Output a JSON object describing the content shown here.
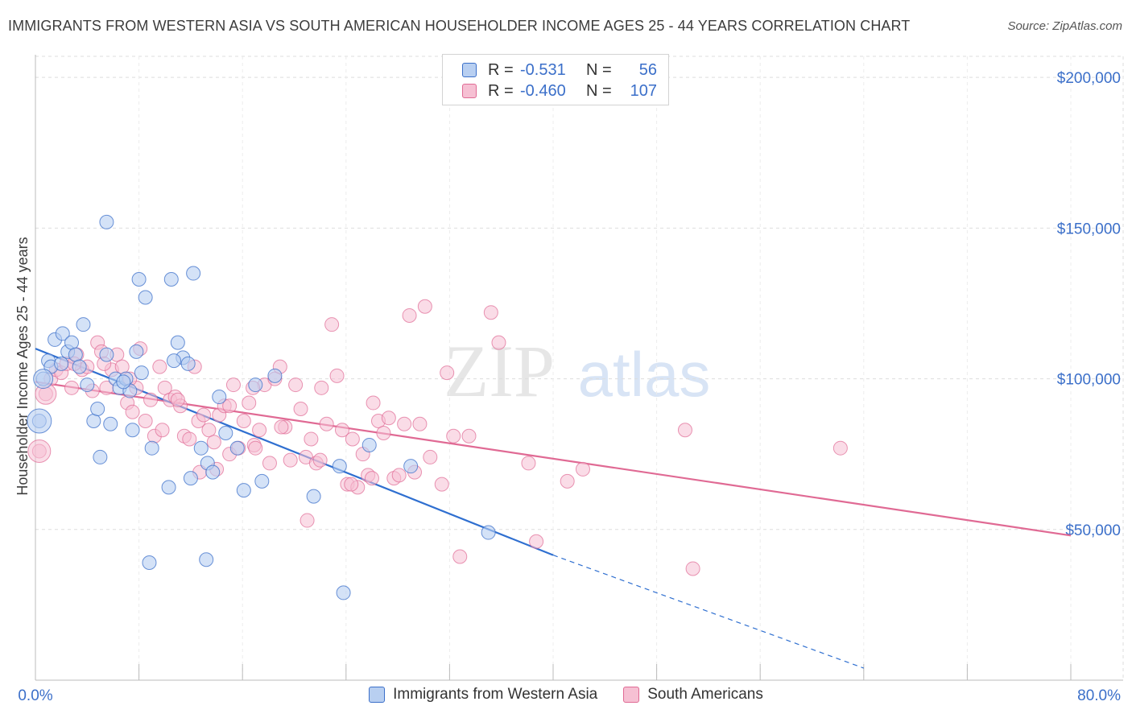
{
  "title": "IMMIGRANTS FROM WESTERN ASIA VS SOUTH AMERICAN HOUSEHOLDER INCOME AGES 25 - 44 YEARS CORRELATION CHART",
  "source": "Source: ZipAtlas.com",
  "colors": {
    "blue": "#3b6fc9",
    "blue_fill": "#b8cff1",
    "blue_line": "#2f6fd0",
    "pink": "#e06a94",
    "pink_fill": "#f6c0d3",
    "grid": "#dddddd",
    "tick_text": "#3b6fc9"
  },
  "legend": {
    "rows": [
      {
        "r_label": "R =",
        "r_value": "-0.531",
        "n_label": "N =",
        "n_value": "56"
      },
      {
        "r_label": "R =",
        "r_value": "-0.460",
        "n_label": "N =",
        "n_value": "107"
      }
    ]
  },
  "bottom_legend": {
    "series1": "Immigrants from Western Asia",
    "series2": "South Americans"
  },
  "watermark": {
    "zip": "ZIP",
    "atlas": "atlas"
  },
  "chart_data": {
    "type": "scatter",
    "title": "IMMIGRANTS FROM WESTERN ASIA VS SOUTH AMERICAN HOUSEHOLDER INCOME AGES 25 - 44 YEARS CORRELATION CHART",
    "xlabel": "",
    "ylabel": "Householder Income Ages 25 - 44 years",
    "xlim": [
      0,
      80
    ],
    "ylim": [
      0,
      215000
    ],
    "x_tick_labels": [
      "0.0%",
      "80.0%"
    ],
    "y_ticks": [
      50000,
      100000,
      150000,
      200000
    ],
    "y_tick_labels": [
      "$50,000",
      "$100,000",
      "$150,000",
      "$200,000"
    ],
    "grid": true,
    "series": [
      {
        "name": "Immigrants from Western Asia",
        "color": "#3b6fc9",
        "r": -0.531,
        "n": 56,
        "trend": {
          "x": [
            0,
            40
          ],
          "y": [
            110000,
            41500
          ],
          "dashed_to": [
            64,
            4000
          ]
        },
        "points": [
          [
            0.3,
            86000
          ],
          [
            0.6,
            100000
          ],
          [
            1.0,
            106000
          ],
          [
            1.2,
            104000
          ],
          [
            1.5,
            113000
          ],
          [
            2.0,
            105000
          ],
          [
            2.1,
            115000
          ],
          [
            2.5,
            109000
          ],
          [
            2.8,
            112000
          ],
          [
            3.1,
            108000
          ],
          [
            3.4,
            104000
          ],
          [
            3.7,
            118000
          ],
          [
            4.0,
            98000
          ],
          [
            4.5,
            86000
          ],
          [
            4.8,
            90000
          ],
          [
            5.0,
            74000
          ],
          [
            5.5,
            108000
          ],
          [
            5.8,
            85000
          ],
          [
            6.2,
            100000
          ],
          [
            6.5,
            97000
          ],
          [
            7.0,
            100000
          ],
          [
            7.3,
            96000
          ],
          [
            7.5,
            83000
          ],
          [
            7.8,
            109000
          ],
          [
            8.2,
            102000
          ],
          [
            8.0,
            133000
          ],
          [
            8.5,
            127000
          ],
          [
            5.5,
            152000
          ],
          [
            10.5,
            133000
          ],
          [
            12.2,
            135000
          ],
          [
            9.0,
            77000
          ],
          [
            10.3,
            64000
          ],
          [
            11.0,
            112000
          ],
          [
            11.4,
            107000
          ],
          [
            11.8,
            105000
          ],
          [
            10.7,
            106000
          ],
          [
            12.0,
            67000
          ],
          [
            12.8,
            77000
          ],
          [
            13.3,
            72000
          ],
          [
            13.7,
            69000
          ],
          [
            14.2,
            94000
          ],
          [
            14.7,
            82000
          ],
          [
            15.6,
            77000
          ],
          [
            16.1,
            63000
          ],
          [
            17.0,
            98000
          ],
          [
            17.5,
            66000
          ],
          [
            18.5,
            101000
          ],
          [
            21.5,
            61000
          ],
          [
            23.5,
            71000
          ],
          [
            25.8,
            78000
          ],
          [
            29.0,
            71000
          ],
          [
            35.0,
            49000
          ],
          [
            8.8,
            39000
          ],
          [
            13.2,
            40000
          ],
          [
            23.8,
            29000
          ],
          [
            6.8,
            99000
          ]
        ]
      },
      {
        "name": "South Americans",
        "color": "#e06a94",
        "r": -0.46,
        "n": 107,
        "trend": {
          "x": [
            0,
            80
          ],
          "y": [
            99000,
            48000
          ]
        },
        "points": [
          [
            0.3,
            76000
          ],
          [
            0.8,
            95000
          ],
          [
            1.2,
            100000
          ],
          [
            1.6,
            103000
          ],
          [
            2.0,
            102000
          ],
          [
            2.4,
            105000
          ],
          [
            2.8,
            97000
          ],
          [
            3.2,
            108000
          ],
          [
            3.6,
            103000
          ],
          [
            4.0,
            104000
          ],
          [
            4.4,
            96000
          ],
          [
            4.8,
            112000
          ],
          [
            5.1,
            109000
          ],
          [
            5.5,
            97000
          ],
          [
            5.9,
            103000
          ],
          [
            6.3,
            108000
          ],
          [
            6.7,
            104000
          ],
          [
            7.1,
            92000
          ],
          [
            7.5,
            89000
          ],
          [
            7.8,
            97000
          ],
          [
            8.1,
            110000
          ],
          [
            8.5,
            86000
          ],
          [
            8.9,
            93000
          ],
          [
            9.2,
            81000
          ],
          [
            9.6,
            104000
          ],
          [
            10.0,
            97000
          ],
          [
            10.4,
            93000
          ],
          [
            10.8,
            94000
          ],
          [
            11.2,
            91000
          ],
          [
            11.5,
            81000
          ],
          [
            11.9,
            80000
          ],
          [
            12.3,
            104000
          ],
          [
            12.6,
            86000
          ],
          [
            13.0,
            88000
          ],
          [
            13.4,
            83000
          ],
          [
            13.8,
            79000
          ],
          [
            14.2,
            88000
          ],
          [
            14.6,
            91000
          ],
          [
            15.0,
            75000
          ],
          [
            15.3,
            98000
          ],
          [
            15.7,
            77000
          ],
          [
            16.1,
            86000
          ],
          [
            16.5,
            92000
          ],
          [
            16.9,
            78000
          ],
          [
            17.3,
            83000
          ],
          [
            17.7,
            98000
          ],
          [
            18.1,
            72000
          ],
          [
            18.5,
            100000
          ],
          [
            18.9,
            104000
          ],
          [
            19.3,
            84000
          ],
          [
            19.7,
            73000
          ],
          [
            20.1,
            98000
          ],
          [
            20.5,
            90000
          ],
          [
            20.9,
            74000
          ],
          [
            21.3,
            80000
          ],
          [
            21.7,
            72000
          ],
          [
            22.1,
            97000
          ],
          [
            22.5,
            85000
          ],
          [
            22.9,
            118000
          ],
          [
            23.3,
            101000
          ],
          [
            23.7,
            83000
          ],
          [
            24.1,
            65000
          ],
          [
            24.5,
            80000
          ],
          [
            24.9,
            64000
          ],
          [
            25.3,
            75000
          ],
          [
            25.7,
            68000
          ],
          [
            26.1,
            92000
          ],
          [
            26.5,
            86000
          ],
          [
            26.9,
            82000
          ],
          [
            27.3,
            87000
          ],
          [
            27.7,
            67000
          ],
          [
            28.1,
            68000
          ],
          [
            28.5,
            85000
          ],
          [
            28.9,
            121000
          ],
          [
            29.3,
            69000
          ],
          [
            29.7,
            85000
          ],
          [
            30.1,
            124000
          ],
          [
            30.5,
            74000
          ],
          [
            31.4,
            65000
          ],
          [
            31.8,
            102000
          ],
          [
            32.3,
            81000
          ],
          [
            32.8,
            41000
          ],
          [
            35.2,
            122000
          ],
          [
            35.8,
            112000
          ],
          [
            38.1,
            72000
          ],
          [
            38.7,
            46000
          ],
          [
            41.1,
            66000
          ],
          [
            42.3,
            70000
          ],
          [
            50.2,
            83000
          ],
          [
            50.8,
            37000
          ],
          [
            62.2,
            77000
          ],
          [
            3.0,
            105000
          ],
          [
            9.8,
            83000
          ],
          [
            14.0,
            70000
          ],
          [
            16.8,
            97000
          ],
          [
            19.0,
            84000
          ],
          [
            26.0,
            67000
          ],
          [
            33.5,
            81000
          ],
          [
            21.0,
            53000
          ],
          [
            11.0,
            93000
          ],
          [
            7.3,
            100000
          ],
          [
            12.7,
            69000
          ],
          [
            15.0,
            91000
          ],
          [
            17.0,
            77000
          ],
          [
            22.0,
            73000
          ],
          [
            24.4,
            65000
          ],
          [
            5.3,
            105000
          ]
        ]
      }
    ]
  }
}
